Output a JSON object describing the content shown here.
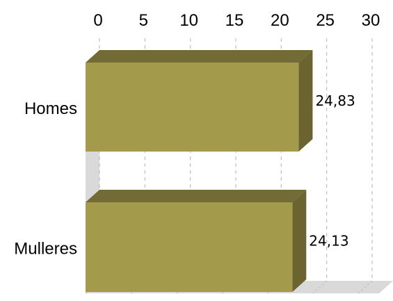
{
  "chart_data": {
    "type": "bar",
    "orientation": "horizontal",
    "three_d": true,
    "categories": [
      "Homes",
      "Mulleres"
    ],
    "values": [
      24.83,
      24.13
    ],
    "data_labels": [
      "24,83",
      "24,13"
    ],
    "xlim": [
      0,
      30
    ],
    "x_ticks": [
      0,
      5,
      10,
      15,
      20,
      25,
      30
    ],
    "x_tick_labels": [
      "0",
      "5",
      "10",
      "15",
      "20",
      "25",
      "30"
    ],
    "x_axis_position": "top",
    "grid": true,
    "legend": "none",
    "colors": {
      "bar_front": "#a39a4c",
      "bar_top": "#726b35",
      "bar_side": "#6b6431",
      "wall": "#d9d9d9",
      "gridline": "#bfbfbf"
    }
  }
}
